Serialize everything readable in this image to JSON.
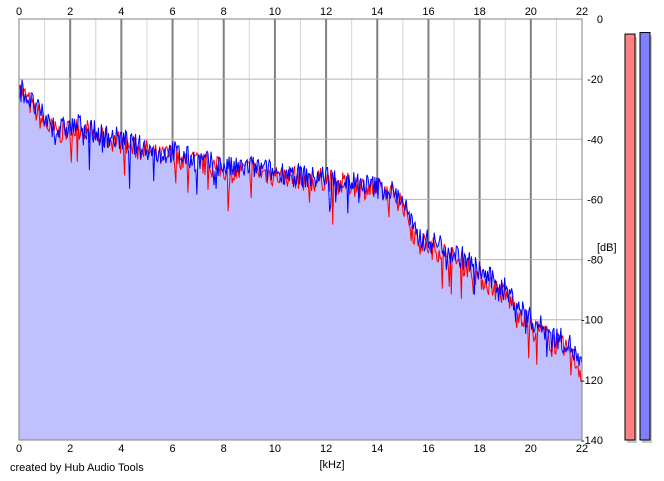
{
  "chart_data": {
    "type": "area",
    "xlabel": "[kHz]",
    "ylabel": "[dB]",
    "xlim": [
      0,
      22
    ],
    "ylim": [
      -140,
      0
    ],
    "x_ticks": [
      0,
      2,
      4,
      6,
      8,
      10,
      12,
      14,
      16,
      18,
      20,
      22
    ],
    "y_ticks": [
      0,
      -20,
      -40,
      -60,
      -80,
      -100,
      -120,
      -140
    ],
    "grid": true,
    "x_axis_position": "top and bottom",
    "y_axis_position": "right",
    "series": [
      {
        "color": "#0000ff",
        "fill": "#c0c0ff",
        "x": [
          0,
          0.5,
          1,
          1.5,
          2,
          2.5,
          3,
          3.5,
          4,
          4.5,
          5,
          5.5,
          6,
          6.5,
          7,
          7.5,
          8,
          8.5,
          9,
          9.5,
          10,
          10.5,
          11,
          11.5,
          12,
          12.5,
          13,
          13.5,
          14,
          14.5,
          15,
          15.5,
          16,
          16.5,
          17,
          17.5,
          18,
          18.5,
          19,
          19.5,
          20,
          20.5,
          21,
          21.5,
          22
        ],
        "values": [
          -22,
          -28,
          -33,
          -37,
          -36,
          -35,
          -38,
          -39,
          -40,
          -42,
          -43,
          -45,
          -44,
          -46,
          -47,
          -48,
          -49,
          -50,
          -49,
          -50,
          -51,
          -51,
          -52,
          -53,
          -52,
          -54,
          -54,
          -55,
          -56,
          -57,
          -60,
          -72,
          -74,
          -75,
          -78,
          -80,
          -84,
          -87,
          -90,
          -95,
          -100,
          -103,
          -106,
          -108,
          -116
        ]
      },
      {
        "color": "#ff0000",
        "x": [
          0,
          0.5,
          1,
          1.5,
          2,
          2.5,
          3,
          3.5,
          4,
          4.5,
          5,
          5.5,
          6,
          6.5,
          7,
          7.5,
          8,
          8.5,
          9,
          9.5,
          10,
          10.5,
          11,
          11.5,
          12,
          12.5,
          13,
          13.5,
          14,
          14.5,
          15,
          15.5,
          16,
          16.5,
          17,
          17.5,
          18,
          18.5,
          19,
          19.5,
          20,
          20.5,
          21,
          21.5,
          22
        ],
        "values": [
          -23,
          -29,
          -35,
          -38,
          -37,
          -36,
          -39,
          -40,
          -41,
          -43,
          -44,
          -46,
          -45,
          -47,
          -48,
          -49,
          -50,
          -51,
          -50,
          -51,
          -52,
          -52,
          -53,
          -54,
          -53,
          -55,
          -55,
          -56,
          -57,
          -58,
          -61,
          -73,
          -76,
          -77,
          -80,
          -82,
          -86,
          -89,
          -92,
          -97,
          -102,
          -105,
          -108,
          -110,
          -118
        ]
      }
    ],
    "level_meters": [
      {
        "color": "#ff8080",
        "level_db": -5
      },
      {
        "color": "#8080ff",
        "level_db": -4.5
      }
    ]
  },
  "credit": "created by Hub Audio Tools"
}
